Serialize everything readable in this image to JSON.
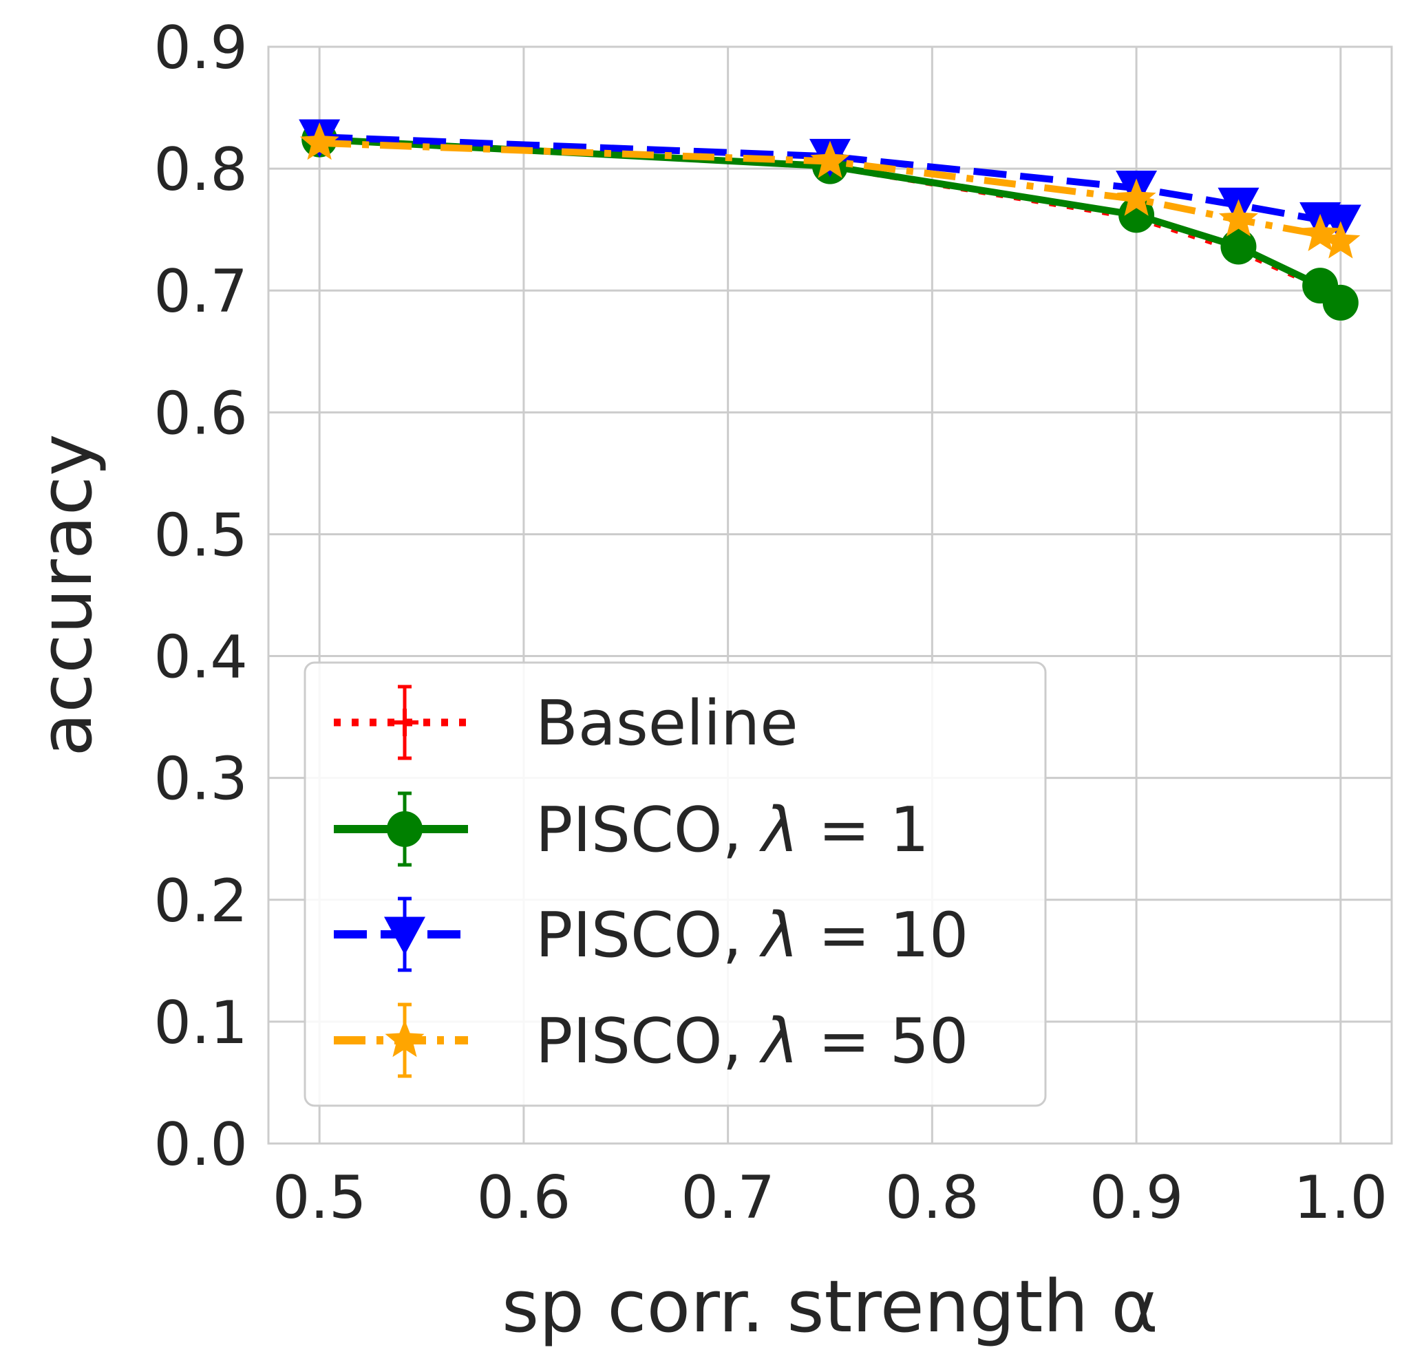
{
  "chart_data": {
    "type": "line",
    "xlabel": "sp corr. strength α",
    "ylabel": "accuracy",
    "xlim": [
      0.475,
      1.025
    ],
    "ylim": [
      0.0,
      0.9
    ],
    "grid": true,
    "legend_position": "lower-left",
    "x_ticks": [
      0.5,
      0.6,
      0.7,
      0.8,
      0.9,
      1.0
    ],
    "x_tick_labels": [
      "0.5",
      "0.6",
      "0.7",
      "0.8",
      "0.9",
      "1.0"
    ],
    "y_ticks": [
      0.0,
      0.1,
      0.2,
      0.3,
      0.4,
      0.5,
      0.6,
      0.7,
      0.8,
      0.9
    ],
    "y_tick_labels": [
      "0.0",
      "0.1",
      "0.2",
      "0.3",
      "0.4",
      "0.5",
      "0.6",
      "0.7",
      "0.8",
      "0.9"
    ],
    "x": [
      0.5,
      0.75,
      0.9,
      0.95,
      0.99,
      1.0
    ],
    "series": [
      {
        "name": "Baseline",
        "legend_prefix": "Baseline",
        "legend_lambda": "",
        "color": "#ff0000",
        "linestyle": "dotted",
        "marker": "plus",
        "values": [
          0.824,
          0.802,
          0.76,
          0.733,
          0.703,
          0.69
        ]
      },
      {
        "name": "PISCO, λ = 1",
        "legend_prefix": "PISCO, ",
        "legend_lambda": "= 1",
        "color": "#008000",
        "linestyle": "solid",
        "marker": "circle",
        "values": [
          0.824,
          0.802,
          0.762,
          0.736,
          0.704,
          0.69
        ]
      },
      {
        "name": "PISCO, λ = 10",
        "legend_prefix": "PISCO, ",
        "legend_lambda": "= 10",
        "color": "#0000ff",
        "linestyle": "dashed",
        "marker": "triangle-down",
        "values": [
          0.826,
          0.81,
          0.784,
          0.77,
          0.758,
          0.756
        ]
      },
      {
        "name": "PISCO, λ = 50",
        "legend_prefix": "PISCO, ",
        "legend_lambda": "= 50",
        "color": "#ffa500",
        "linestyle": "dashdot",
        "marker": "star",
        "values": [
          0.821,
          0.806,
          0.775,
          0.758,
          0.746,
          0.74
        ]
      }
    ]
  }
}
